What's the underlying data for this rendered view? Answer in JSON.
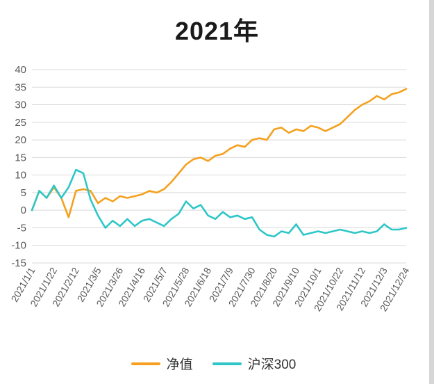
{
  "chart": {
    "title": "2021年"
  },
  "legend": {
    "items": [
      {
        "label": "净值",
        "color": "#F5A01E"
      },
      {
        "label": "沪深300",
        "color": "#2EC6C8"
      }
    ]
  },
  "chart_data": {
    "type": "line",
    "title": "2021年",
    "xlabel": "",
    "ylabel": "",
    "ylim": [
      -15,
      40
    ],
    "y_tick_step": 5,
    "grid": true,
    "legend_position": "bottom",
    "x_tick_interval": 3,
    "x": [
      "2021/1/1",
      "2021/1/8",
      "2021/1/15",
      "2021/1/22",
      "2021/1/29",
      "2021/2/5",
      "2021/2/12",
      "2021/2/19",
      "2021/2/26",
      "2021/3/5",
      "2021/3/12",
      "2021/3/19",
      "2021/3/26",
      "2021/4/2",
      "2021/4/9",
      "2021/4/16",
      "2021/4/23",
      "2021/4/30",
      "2021/5/7",
      "2021/5/14",
      "2021/5/21",
      "2021/5/28",
      "2021/6/4",
      "2021/6/11",
      "2021/6/18",
      "2021/6/25",
      "2021/7/2",
      "2021/7/9",
      "2021/7/16",
      "2021/7/23",
      "2021/7/30",
      "2021/8/6",
      "2021/8/13",
      "2021/8/20",
      "2021/8/27",
      "2021/9/3",
      "2021/9/10",
      "2021/9/17",
      "2021/9/24",
      "2021/10/1",
      "2021/10/8",
      "2021/10/15",
      "2021/10/22",
      "2021/10/29",
      "2021/11/5",
      "2021/11/12",
      "2021/11/19",
      "2021/11/26",
      "2021/12/3",
      "2021/12/10",
      "2021/12/17",
      "2021/12/24"
    ],
    "series": [
      {
        "name": "净值",
        "color": "#F5A01E",
        "values": [
          0,
          5.5,
          3.5,
          6.5,
          3.5,
          -2,
          5.5,
          6,
          5.5,
          2,
          3.5,
          2.5,
          4,
          3.5,
          4,
          4.5,
          5.5,
          5,
          6,
          8,
          10.5,
          13,
          14.5,
          15,
          14,
          15.5,
          16,
          17.5,
          18.5,
          18,
          20,
          20.5,
          20,
          23,
          23.5,
          22,
          23,
          22.5,
          24,
          23.5,
          22.5,
          23.5,
          24.5,
          26.5,
          28.5,
          30,
          31,
          32.5,
          31.5,
          33,
          33.5,
          34.5
        ]
      },
      {
        "name": "沪深300",
        "color": "#2EC6C8",
        "values": [
          0,
          5.5,
          3.5,
          7,
          3.5,
          6.5,
          11.5,
          10.5,
          3,
          -1.5,
          -5,
          -3,
          -4.5,
          -2.5,
          -4.5,
          -3,
          -2.5,
          -3.5,
          -4.5,
          -2.5,
          -1,
          2.5,
          0.5,
          1.5,
          -1.5,
          -2.5,
          -0.5,
          -2,
          -1.5,
          -2.5,
          -2,
          -5.5,
          -7,
          -7.5,
          -6,
          -6.5,
          -4,
          -7,
          -6.5,
          -6,
          -6.5,
          -6,
          -5.5,
          -6,
          -6.5,
          -6,
          -6.5,
          -6,
          -4,
          -5.5,
          -5.5,
          -5
        ]
      }
    ],
    "axis_label_color": "#595959",
    "gridline_color": "#d9d9d9"
  }
}
